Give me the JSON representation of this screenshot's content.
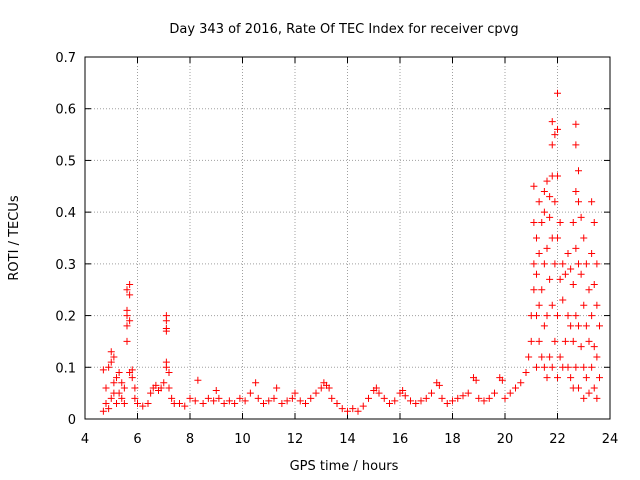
{
  "chart_data": {
    "type": "scatter",
    "title": "Day 343 of 2016, Rate Of TEC Index for receiver cpvg",
    "xlabel": "GPS time / hours",
    "ylabel": "ROTI / TECUs",
    "xlim": [
      4,
      24
    ],
    "ylim": [
      0,
      0.7
    ],
    "xticks": [
      "4",
      "6",
      "8",
      "10",
      "12",
      "14",
      "16",
      "18",
      "20",
      "22",
      "24"
    ],
    "yticks": [
      "0",
      "0.1",
      "0.2",
      "0.3",
      "0.4",
      "0.5",
      "0.6",
      "0.7"
    ],
    "grid": true,
    "marker": "plus",
    "marker_color": "#ff0000",
    "series": [
      {
        "points": [
          [
            4.7,
            0.015
          ],
          [
            4.7,
            0.095
          ],
          [
            4.8,
            0.03
          ],
          [
            4.8,
            0.06
          ],
          [
            4.9,
            0.02
          ],
          [
            4.9,
            0.1
          ],
          [
            5.0,
            0.04
          ],
          [
            5.0,
            0.11
          ],
          [
            5.0,
            0.13
          ],
          [
            5.1,
            0.05
          ],
          [
            5.1,
            0.07
          ],
          [
            5.1,
            0.12
          ],
          [
            5.2,
            0.03
          ],
          [
            5.2,
            0.08
          ],
          [
            5.3,
            0.05
          ],
          [
            5.3,
            0.09
          ],
          [
            5.4,
            0.04
          ],
          [
            5.4,
            0.07
          ],
          [
            5.5,
            0.03
          ],
          [
            5.5,
            0.06
          ],
          [
            5.6,
            0.15
          ],
          [
            5.6,
            0.18
          ],
          [
            5.6,
            0.2
          ],
          [
            5.6,
            0.21
          ],
          [
            5.6,
            0.25
          ],
          [
            5.7,
            0.26
          ],
          [
            5.7,
            0.24
          ],
          [
            5.7,
            0.19
          ],
          [
            5.7,
            0.09
          ],
          [
            5.8,
            0.095
          ],
          [
            5.8,
            0.08
          ],
          [
            5.9,
            0.06
          ],
          [
            5.9,
            0.04
          ],
          [
            6.0,
            0.03
          ],
          [
            6.2,
            0.025
          ],
          [
            6.4,
            0.03
          ],
          [
            6.5,
            0.05
          ],
          [
            6.6,
            0.06
          ],
          [
            6.7,
            0.065
          ],
          [
            6.8,
            0.055
          ],
          [
            6.9,
            0.06
          ],
          [
            7.0,
            0.07
          ],
          [
            7.1,
            0.1
          ],
          [
            7.1,
            0.11
          ],
          [
            7.1,
            0.17
          ],
          [
            7.1,
            0.175
          ],
          [
            7.1,
            0.19
          ],
          [
            7.1,
            0.2
          ],
          [
            7.2,
            0.09
          ],
          [
            7.2,
            0.06
          ],
          [
            7.3,
            0.04
          ],
          [
            7.4,
            0.03
          ],
          [
            7.6,
            0.03
          ],
          [
            7.8,
            0.025
          ],
          [
            8.0,
            0.04
          ],
          [
            8.2,
            0.035
          ],
          [
            8.3,
            0.075
          ],
          [
            8.5,
            0.03
          ],
          [
            8.7,
            0.04
          ],
          [
            8.9,
            0.035
          ],
          [
            9.0,
            0.055
          ],
          [
            9.1,
            0.04
          ],
          [
            9.3,
            0.03
          ],
          [
            9.5,
            0.035
          ],
          [
            9.7,
            0.03
          ],
          [
            9.9,
            0.04
          ],
          [
            10.1,
            0.035
          ],
          [
            10.3,
            0.05
          ],
          [
            10.5,
            0.07
          ],
          [
            10.6,
            0.04
          ],
          [
            10.8,
            0.03
          ],
          [
            11.0,
            0.035
          ],
          [
            11.2,
            0.04
          ],
          [
            11.3,
            0.06
          ],
          [
            11.5,
            0.03
          ],
          [
            11.7,
            0.035
          ],
          [
            11.9,
            0.04
          ],
          [
            12.0,
            0.05
          ],
          [
            12.2,
            0.035
          ],
          [
            12.4,
            0.03
          ],
          [
            12.6,
            0.04
          ],
          [
            12.8,
            0.05
          ],
          [
            13.0,
            0.06
          ],
          [
            13.1,
            0.07
          ],
          [
            13.2,
            0.065
          ],
          [
            13.3,
            0.06
          ],
          [
            13.4,
            0.04
          ],
          [
            13.6,
            0.03
          ],
          [
            13.8,
            0.02
          ],
          [
            14.0,
            0.015
          ],
          [
            14.2,
            0.02
          ],
          [
            14.4,
            0.015
          ],
          [
            14.6,
            0.025
          ],
          [
            14.8,
            0.04
          ],
          [
            15.0,
            0.055
          ],
          [
            15.1,
            0.06
          ],
          [
            15.2,
            0.05
          ],
          [
            15.4,
            0.04
          ],
          [
            15.6,
            0.03
          ],
          [
            15.8,
            0.035
          ],
          [
            16.0,
            0.05
          ],
          [
            16.1,
            0.055
          ],
          [
            16.2,
            0.045
          ],
          [
            16.4,
            0.035
          ],
          [
            16.6,
            0.03
          ],
          [
            16.8,
            0.035
          ],
          [
            17.0,
            0.04
          ],
          [
            17.2,
            0.05
          ],
          [
            17.4,
            0.07
          ],
          [
            17.5,
            0.065
          ],
          [
            17.6,
            0.04
          ],
          [
            17.8,
            0.03
          ],
          [
            18.0,
            0.035
          ],
          [
            18.2,
            0.04
          ],
          [
            18.4,
            0.045
          ],
          [
            18.6,
            0.05
          ],
          [
            18.8,
            0.08
          ],
          [
            18.9,
            0.075
          ],
          [
            19.0,
            0.04
          ],
          [
            19.2,
            0.035
          ],
          [
            19.4,
            0.04
          ],
          [
            19.6,
            0.05
          ],
          [
            19.8,
            0.08
          ],
          [
            19.9,
            0.075
          ],
          [
            20.0,
            0.04
          ],
          [
            20.2,
            0.05
          ],
          [
            20.4,
            0.06
          ],
          [
            20.6,
            0.07
          ],
          [
            20.8,
            0.09
          ],
          [
            20.9,
            0.12
          ],
          [
            21.0,
            0.15
          ],
          [
            21.0,
            0.2
          ],
          [
            21.1,
            0.25
          ],
          [
            21.1,
            0.3
          ],
          [
            21.1,
            0.38
          ],
          [
            21.1,
            0.45
          ],
          [
            21.2,
            0.1
          ],
          [
            21.2,
            0.2
          ],
          [
            21.2,
            0.28
          ],
          [
            21.2,
            0.35
          ],
          [
            21.3,
            0.15
          ],
          [
            21.3,
            0.22
          ],
          [
            21.3,
            0.32
          ],
          [
            21.3,
            0.42
          ],
          [
            21.4,
            0.12
          ],
          [
            21.4,
            0.25
          ],
          [
            21.4,
            0.38
          ],
          [
            21.5,
            0.1
          ],
          [
            21.5,
            0.18
          ],
          [
            21.5,
            0.3
          ],
          [
            21.5,
            0.4
          ],
          [
            21.5,
            0.44
          ],
          [
            21.6,
            0.08
          ],
          [
            21.6,
            0.2
          ],
          [
            21.6,
            0.33
          ],
          [
            21.6,
            0.46
          ],
          [
            21.7,
            0.12
          ],
          [
            21.7,
            0.27
          ],
          [
            21.7,
            0.39
          ],
          [
            21.7,
            0.43
          ],
          [
            21.8,
            0.1
          ],
          [
            21.8,
            0.22
          ],
          [
            21.8,
            0.35
          ],
          [
            21.8,
            0.47
          ],
          [
            21.8,
            0.53
          ],
          [
            21.8,
            0.575
          ],
          [
            21.9,
            0.15
          ],
          [
            21.9,
            0.3
          ],
          [
            21.9,
            0.42
          ],
          [
            21.9,
            0.55
          ],
          [
            22.0,
            0.63
          ],
          [
            22.0,
            0.56
          ],
          [
            22.0,
            0.47
          ],
          [
            22.0,
            0.35
          ],
          [
            22.0,
            0.2
          ],
          [
            22.0,
            0.08
          ],
          [
            22.1,
            0.12
          ],
          [
            22.1,
            0.27
          ],
          [
            22.1,
            0.38
          ],
          [
            22.2,
            0.1
          ],
          [
            22.2,
            0.23
          ],
          [
            22.2,
            0.3
          ],
          [
            22.3,
            0.15
          ],
          [
            22.3,
            0.28
          ],
          [
            22.4,
            0.1
          ],
          [
            22.4,
            0.2
          ],
          [
            22.4,
            0.32
          ],
          [
            22.5,
            0.08
          ],
          [
            22.5,
            0.18
          ],
          [
            22.5,
            0.29
          ],
          [
            22.6,
            0.06
          ],
          [
            22.6,
            0.15
          ],
          [
            22.6,
            0.26
          ],
          [
            22.6,
            0.38
          ],
          [
            22.7,
            0.57
          ],
          [
            22.7,
            0.53
          ],
          [
            22.7,
            0.44
          ],
          [
            22.7,
            0.33
          ],
          [
            22.7,
            0.2
          ],
          [
            22.7,
            0.1
          ],
          [
            22.8,
            0.48
          ],
          [
            22.8,
            0.42
          ],
          [
            22.8,
            0.3
          ],
          [
            22.8,
            0.18
          ],
          [
            22.8,
            0.06
          ],
          [
            22.9,
            0.39
          ],
          [
            22.9,
            0.28
          ],
          [
            22.9,
            0.14
          ],
          [
            23.0,
            0.35
          ],
          [
            23.0,
            0.22
          ],
          [
            23.0,
            0.1
          ],
          [
            23.0,
            0.04
          ],
          [
            23.1,
            0.3
          ],
          [
            23.1,
            0.18
          ],
          [
            23.1,
            0.08
          ],
          [
            23.2,
            0.25
          ],
          [
            23.2,
            0.15
          ],
          [
            23.2,
            0.05
          ],
          [
            23.3,
            0.42
          ],
          [
            23.3,
            0.32
          ],
          [
            23.3,
            0.2
          ],
          [
            23.3,
            0.1
          ],
          [
            23.4,
            0.38
          ],
          [
            23.4,
            0.26
          ],
          [
            23.4,
            0.14
          ],
          [
            23.4,
            0.06
          ],
          [
            23.5,
            0.3
          ],
          [
            23.5,
            0.22
          ],
          [
            23.5,
            0.12
          ],
          [
            23.5,
            0.04
          ],
          [
            23.6,
            0.18
          ],
          [
            23.6,
            0.08
          ]
        ]
      }
    ]
  }
}
